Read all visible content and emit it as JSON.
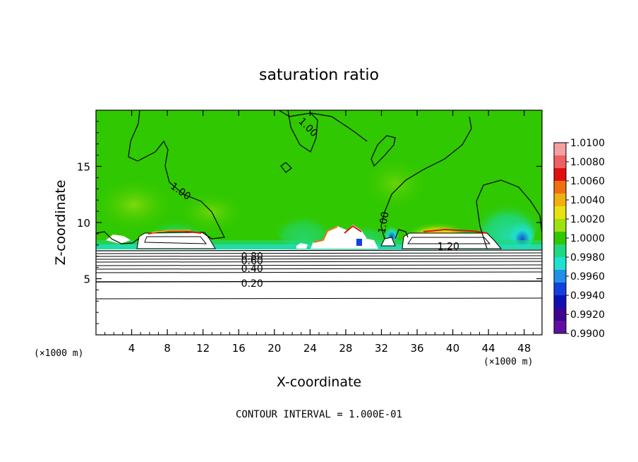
{
  "chart_data": {
    "type": "heatmap",
    "title": "saturation ratio",
    "xlabel": "X-coordinate",
    "ylabel": "Z-coordinate",
    "x_units": "(×1000 m)",
    "x_units_right": "(×1000 m)",
    "xlim": [
      0,
      50
    ],
    "ylim": [
      0,
      20
    ],
    "x_ticks": [
      4,
      8,
      12,
      16,
      20,
      24,
      28,
      32,
      36,
      40,
      44,
      48
    ],
    "y_ticks": [
      5,
      10,
      15
    ],
    "colorbar": {
      "labels": [
        "1.0100",
        "1.0080",
        "1.0060",
        "1.0040",
        "1.0020",
        "1.0000",
        "0.9980",
        "0.9960",
        "0.9940",
        "0.9920",
        "0.9900"
      ],
      "colors": [
        "#f4a0a0",
        "#f06060",
        "#e01010",
        "#f07010",
        "#f0b010",
        "#e8e010",
        "#a0e010",
        "#30c800",
        "#20d880",
        "#20e0d0",
        "#2090e8",
        "#1040e0",
        "#1010b0",
        "#400090",
        "#6010a0"
      ]
    },
    "contour_labels": [
      {
        "text": "1.00",
        "x": 23.8,
        "z": 18.5,
        "angle": 45
      },
      {
        "text": "1.00",
        "x": 9.5,
        "z": 12.8,
        "angle": 35
      },
      {
        "text": "1.00",
        "x": 32.2,
        "z": 10.0,
        "angle": -80
      },
      {
        "text": "1.20",
        "x": 39.5,
        "z": 7.9,
        "angle": 0
      },
      {
        "text": "0.80",
        "x": 17.5,
        "z": 7.0,
        "angle": 0
      },
      {
        "text": "0.60",
        "x": 17.5,
        "z": 6.6,
        "angle": 0
      },
      {
        "text": "0.40",
        "x": 17.5,
        "z": 5.9,
        "angle": 0
      },
      {
        "text": "0.20",
        "x": 17.5,
        "z": 4.6,
        "angle": 0
      }
    ],
    "footer": "CONTOUR INTERVAL = 1.000E-01"
  }
}
